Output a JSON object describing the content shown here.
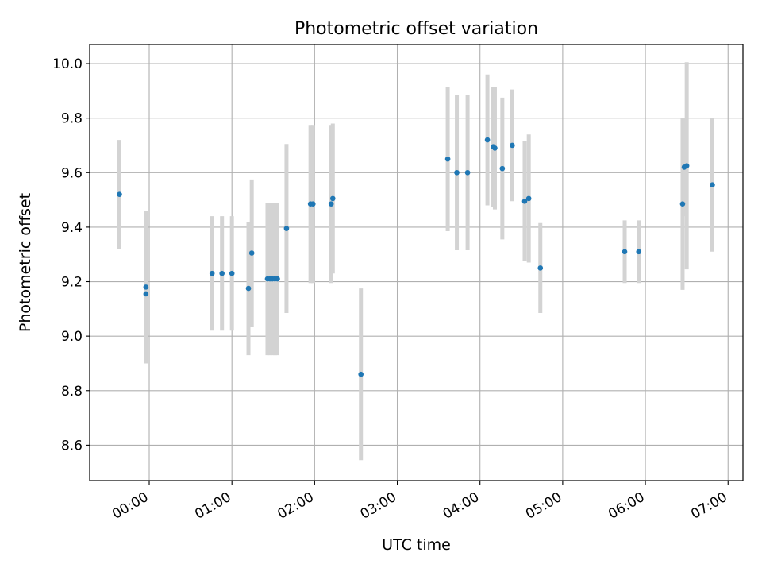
{
  "chart_data": {
    "type": "scatter",
    "title": "Photometric offset variation",
    "xlabel": "UTC time",
    "ylabel": "Photometric offset",
    "x_unit": "hours_utc",
    "xlim": [
      -0.72,
      7.18
    ],
    "ylim": [
      8.47,
      10.07
    ],
    "grid": true,
    "x_ticks": [
      {
        "value": 0,
        "label": "00:00"
      },
      {
        "value": 1,
        "label": "01:00"
      },
      {
        "value": 2,
        "label": "02:00"
      },
      {
        "value": 3,
        "label": "03:00"
      },
      {
        "value": 4,
        "label": "04:00"
      },
      {
        "value": 5,
        "label": "05:00"
      },
      {
        "value": 6,
        "label": "06:00"
      },
      {
        "value": 7,
        "label": "07:00"
      }
    ],
    "y_ticks": [
      {
        "value": 8.6,
        "label": "8.6"
      },
      {
        "value": 8.8,
        "label": "8.8"
      },
      {
        "value": 9.0,
        "label": "9.0"
      },
      {
        "value": 9.2,
        "label": "9.2"
      },
      {
        "value": 9.4,
        "label": "9.4"
      },
      {
        "value": 9.6,
        "label": "9.6"
      },
      {
        "value": 9.8,
        "label": "9.8"
      },
      {
        "value": 10.0,
        "label": "10.0"
      }
    ],
    "marker_color": "#1f77b4",
    "errorbar_color": "#d3d3d3",
    "points": [
      {
        "x": -0.36,
        "y": 9.52,
        "err": 0.2
      },
      {
        "x": -0.04,
        "y": 9.18,
        "err": 0.28
      },
      {
        "x": -0.04,
        "y": 9.155,
        "err": 0.25
      },
      {
        "x": 0.76,
        "y": 9.23,
        "err": 0.21
      },
      {
        "x": 0.88,
        "y": 9.23,
        "err": 0.21
      },
      {
        "x": 1.0,
        "y": 9.23,
        "err": 0.21
      },
      {
        "x": 1.2,
        "y": 9.175,
        "err": 0.245
      },
      {
        "x": 1.24,
        "y": 9.305,
        "err": 0.27
      },
      {
        "x": 1.43,
        "y": 9.21,
        "err": 0.28
      },
      {
        "x": 1.46,
        "y": 9.21,
        "err": 0.28
      },
      {
        "x": 1.49,
        "y": 9.21,
        "err": 0.28
      },
      {
        "x": 1.52,
        "y": 9.21,
        "err": 0.28
      },
      {
        "x": 1.55,
        "y": 9.21,
        "err": 0.28
      },
      {
        "x": 1.66,
        "y": 9.395,
        "err": 0.31
      },
      {
        "x": 1.95,
        "y": 9.485,
        "err": 0.29
      },
      {
        "x": 1.98,
        "y": 9.485,
        "err": 0.29
      },
      {
        "x": 2.2,
        "y": 9.485,
        "err": 0.29
      },
      {
        "x": 2.22,
        "y": 9.505,
        "err": 0.275
      },
      {
        "x": 2.56,
        "y": 8.86,
        "err": 0.315
      },
      {
        "x": 3.61,
        "y": 9.65,
        "err": 0.265
      },
      {
        "x": 3.72,
        "y": 9.6,
        "err": 0.285
      },
      {
        "x": 3.85,
        "y": 9.6,
        "err": 0.285
      },
      {
        "x": 4.09,
        "y": 9.72,
        "err": 0.24
      },
      {
        "x": 4.16,
        "y": 9.695,
        "err": 0.22
      },
      {
        "x": 4.18,
        "y": 9.69,
        "err": 0.225
      },
      {
        "x": 4.27,
        "y": 9.615,
        "err": 0.26
      },
      {
        "x": 4.39,
        "y": 9.7,
        "err": 0.205
      },
      {
        "x": 4.54,
        "y": 9.495,
        "err": 0.22
      },
      {
        "x": 4.59,
        "y": 9.505,
        "err": 0.235
      },
      {
        "x": 4.73,
        "y": 9.25,
        "err": 0.165
      },
      {
        "x": 5.75,
        "y": 9.31,
        "err": 0.115
      },
      {
        "x": 5.92,
        "y": 9.31,
        "err": 0.115
      },
      {
        "x": 6.45,
        "y": 9.485,
        "err": 0.315
      },
      {
        "x": 6.47,
        "y": 9.62,
        "err": 0.18
      },
      {
        "x": 6.5,
        "y": 9.625,
        "err": 0.38
      },
      {
        "x": 6.81,
        "y": 9.555,
        "err": 0.245
      }
    ]
  }
}
